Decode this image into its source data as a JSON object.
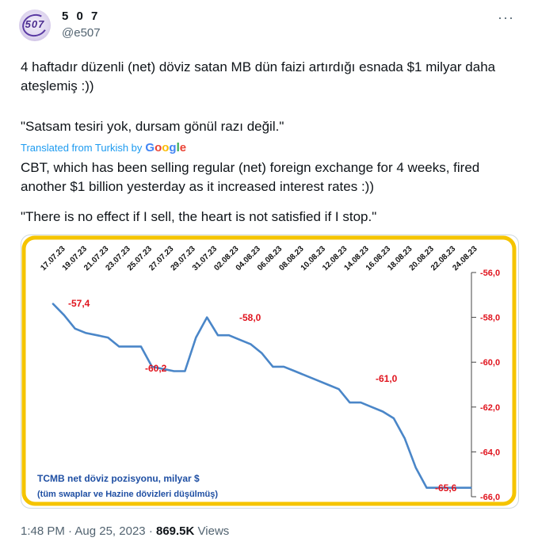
{
  "author": {
    "display_name": "5 0 7",
    "handle": "@e507",
    "avatar_text": "507"
  },
  "menu_icon": "more-horizontal-icon",
  "tweet": {
    "original_p1": "4 haftadır düzenli (net) döviz satan MB dün faizi artırdığı esnada $1 milyar daha ateşlemiş :))",
    "original_p2": "\"Satsam tesiri yok, dursam gönül razı değil.\"",
    "translated_label": "Translated from Turkish by",
    "translated_p1": "CBT, which has been selling regular (net) foreign exchange for 4 weeks, fired another $1 billion yesterday as it increased interest rates :))",
    "translated_p2": "\"There is no effect if I sell, the heart is not satisfied if I stop.\""
  },
  "footer": {
    "time": "1:48 PM",
    "date": "Aug 25, 2023",
    "views_count": "869.5K",
    "views_label": "Views"
  },
  "colors": {
    "frame_yellow": "#f5c400",
    "line_blue": "#4a86c8",
    "label_red": "#e0141e",
    "caption_blue": "#1f4fa3"
  },
  "chart_data": {
    "type": "line",
    "x_tick_labels": [
      "17.07.23",
      "19.07.23",
      "21.07.23",
      "23.07.23",
      "25.07.23",
      "27.07.23",
      "29.07.23",
      "31.07.23",
      "02.08.23",
      "04.08.23",
      "06.08.23",
      "08.08.23",
      "10.08.23",
      "12.08.23",
      "14.08.23",
      "16.08.23",
      "18.08.23",
      "20.08.23",
      "22.08.23",
      "24.08.23"
    ],
    "y_tick_labels": [
      "-56,0",
      "-58,0",
      "-60,0",
      "-62,0",
      "-64,0",
      "-66,0"
    ],
    "ylim": [
      -66,
      -56
    ],
    "y_axis_side": "right",
    "y_reversed": true,
    "x": [
      0,
      1,
      2,
      3,
      4,
      5,
      6,
      7,
      8,
      9,
      10,
      11,
      12,
      13,
      14,
      15,
      16,
      17,
      18,
      19,
      20,
      21,
      22,
      23,
      24,
      25,
      26,
      27,
      28,
      29,
      30,
      31,
      32,
      33,
      34,
      35,
      36,
      37,
      38
    ],
    "values": [
      -57.4,
      -57.9,
      -58.5,
      -58.7,
      -58.8,
      -58.9,
      -59.3,
      -59.3,
      -59.3,
      -60.2,
      -60.3,
      -60.4,
      -60.4,
      -58.9,
      -58.0,
      -58.8,
      -58.8,
      -59.0,
      -59.2,
      -59.6,
      -60.2,
      -60.2,
      -60.4,
      -60.6,
      -60.8,
      -61.0,
      -61.2,
      -61.8,
      -61.8,
      -62.0,
      -62.2,
      -62.5,
      -63.4,
      -64.7,
      -65.6,
      -65.6,
      -65.6,
      -65.6,
      -65.6
    ],
    "annotations": [
      "-57,4",
      "-58,0",
      "-60,2",
      "-61,0",
      "-65,6"
    ],
    "caption_line1": "TCMB net döviz pozisyonu,  milyar $",
    "caption_line2": "(tüm swaplar ve Hazine dövizleri düşülmüş)"
  }
}
